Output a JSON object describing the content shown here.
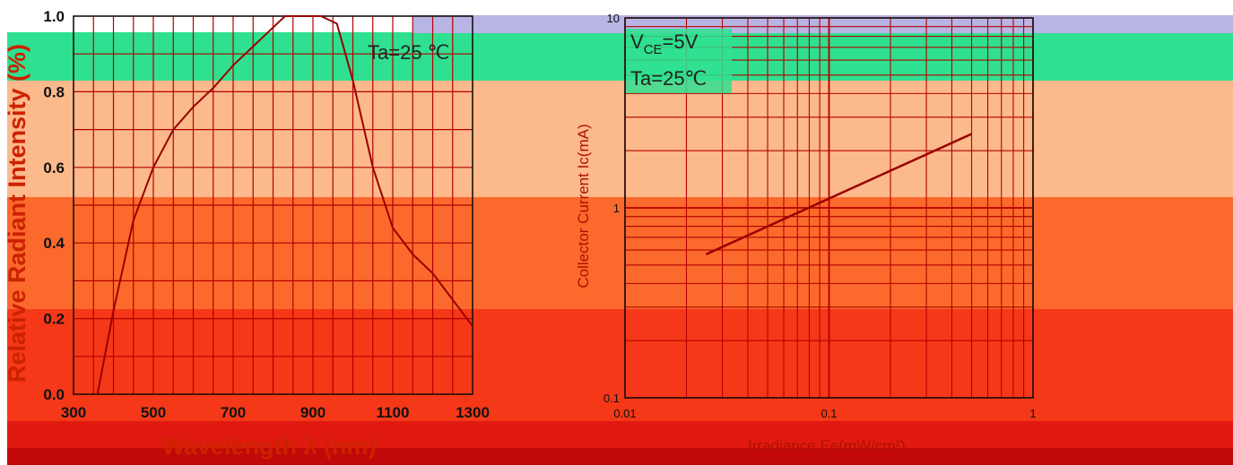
{
  "colors": {
    "band_top": "#2fe090",
    "band_peach": "#fcb98c",
    "band_orange": "#fb6a2c",
    "band_red": "#f53818",
    "band_deep": "#e01a10",
    "band_bottom": "#c20808",
    "strip_lavender": "#b8b4e4",
    "grid": "#b40000",
    "curve_left": "#990000",
    "curve_right": "#990000"
  },
  "chart_data": [
    {
      "type": "line",
      "title": "",
      "xlabel": "Wavelength λ (nm)",
      "ylabel": "Relative Radiant Intensity (%)",
      "xlim": [
        300,
        1300
      ],
      "ylim": [
        0.0,
        1.0
      ],
      "x_tick_labels": [
        "300",
        "500",
        "700",
        "900",
        "1100",
        "1300"
      ],
      "y_tick_labels": [
        "0.0",
        "0.2",
        "0.4",
        "0.6",
        "0.8",
        "1.0"
      ],
      "grid": true,
      "annotation": "Ta=25 ℃",
      "series": [
        {
          "x": [
            360,
            400,
            450,
            500,
            550,
            600,
            650,
            700,
            750,
            800,
            830,
            870,
            920,
            960,
            1000,
            1050,
            1100,
            1150,
            1200,
            1250,
            1300
          ],
          "y": [
            0.0,
            0.22,
            0.46,
            0.6,
            0.7,
            0.76,
            0.81,
            0.87,
            0.92,
            0.97,
            1.0,
            1.0,
            1.0,
            0.98,
            0.83,
            0.6,
            0.44,
            0.37,
            0.32,
            0.25,
            0.18
          ]
        }
      ]
    },
    {
      "type": "line",
      "title": "",
      "xlabel": "Irradiance Ee(mW/cm²)",
      "ylabel": "Collector Current Ic(mA)",
      "x_scale": "log",
      "y_scale": "log",
      "xlim": [
        0.01,
        1
      ],
      "ylim": [
        0.1,
        10
      ],
      "x_tick_labels": [
        "0.01",
        "0.1",
        "1"
      ],
      "y_tick_labels": [
        "0.1",
        "1",
        "10"
      ],
      "grid": true,
      "annotation_vce": "V",
      "annotation_vce_sub": "CE",
      "annotation_vce_val": "=5V",
      "annotation_ta": "Ta=25℃",
      "series": [
        {
          "x": [
            0.025,
            0.5
          ],
          "y": [
            0.57,
            2.45
          ]
        }
      ]
    }
  ]
}
